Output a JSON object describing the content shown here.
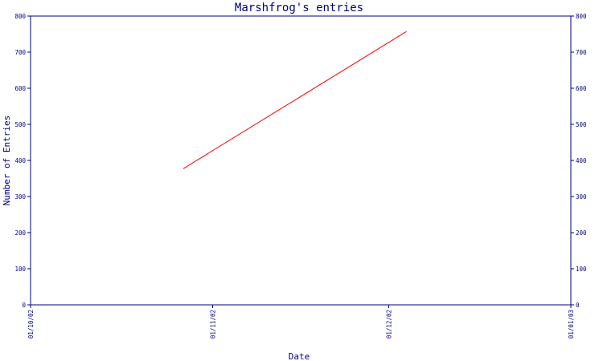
{
  "chart_data": {
    "type": "line",
    "title": "Marshfrog's entries",
    "xlabel": "Date",
    "ylabel": "Number of Entries",
    "x_ticks": [
      "01/10/02",
      "01/11/02",
      "01/12/02",
      "01/01/03"
    ],
    "y_ticks": [
      "0",
      "100",
      "200",
      "300",
      "400",
      "500",
      "600",
      "700",
      "800"
    ],
    "ylim": [
      0,
      800
    ],
    "xlim": [
      "2002-10-01",
      "2003-01-01"
    ],
    "grid": false,
    "series": [
      {
        "points": [
          {
            "x": "2002-10-27",
            "y": 377
          },
          {
            "x": "2002-12-04",
            "y": 757
          }
        ]
      }
    ]
  },
  "colors": {
    "axes": "#000080",
    "text": "#000080",
    "line": "#ff0000",
    "background": "#ffffff"
  }
}
